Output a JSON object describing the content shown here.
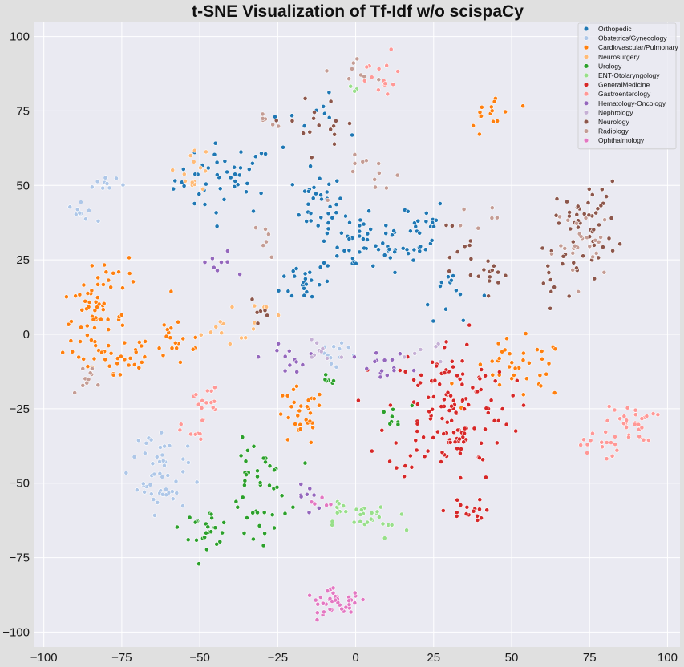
{
  "chart_data": {
    "type": "scatter",
    "title": "t-SNE Visualization of Tf-Idf w/o scispaCy",
    "xlabel": "",
    "ylabel": "",
    "xlim": [
      -103,
      104
    ],
    "ylim": [
      -105,
      105
    ],
    "xticks": [
      -100,
      -75,
      -50,
      -25,
      0,
      25,
      50,
      75,
      100
    ],
    "yticks": [
      -100,
      -75,
      -50,
      -25,
      0,
      25,
      50,
      75,
      100
    ],
    "xtick_labels": [
      "−100",
      "−75",
      "−50",
      "−25",
      "0",
      "25",
      "50",
      "75",
      "100"
    ],
    "ytick_labels": [
      "−100",
      "−75",
      "−50",
      "−25",
      "0",
      "25",
      "50",
      "75",
      "100"
    ],
    "grid": true,
    "legend_position": "top-right",
    "series": [
      {
        "name": "Orthopedic",
        "color": "#1f77b4",
        "clusters": [
          {
            "cx": -42,
            "cy": 52,
            "sx": 8,
            "sy": 6,
            "n": 45
          },
          {
            "cx": -12,
            "cy": 44,
            "sx": 4,
            "sy": 5,
            "n": 30
          },
          {
            "cx": 2,
            "cy": 30,
            "sx": 7,
            "sy": 5,
            "n": 45
          },
          {
            "cx": 18,
            "cy": 35,
            "sx": 6,
            "sy": 6,
            "n": 30
          },
          {
            "cx": -16,
            "cy": 18,
            "sx": 4,
            "sy": 4,
            "n": 22
          },
          {
            "cx": 30,
            "cy": 15,
            "sx": 5,
            "sy": 5,
            "n": 14
          },
          {
            "cx": -15,
            "cy": 72,
            "sx": 8,
            "sy": 4,
            "n": 10
          }
        ]
      },
      {
        "name": "Obstetrics/Gynecology",
        "color": "#aec7e8",
        "clusters": [
          {
            "cx": -88,
            "cy": 41,
            "sx": 2,
            "sy": 1.5,
            "n": 10
          },
          {
            "cx": -80,
            "cy": 51,
            "sx": 3,
            "sy": 2,
            "n": 10
          },
          {
            "cx": -62,
            "cy": -48,
            "sx": 4,
            "sy": 6,
            "n": 38
          },
          {
            "cx": -65,
            "cy": -40,
            "sx": 3,
            "sy": 3,
            "n": 12
          },
          {
            "cx": -6,
            "cy": -6,
            "sx": 4,
            "sy": 4,
            "n": 12
          }
        ]
      },
      {
        "name": "Cardiovascular/Pulmonary",
        "color": "#ff7f0e",
        "clusters": [
          {
            "cx": -84,
            "cy": 5,
            "sx": 5,
            "sy": 6,
            "n": 55
          },
          {
            "cx": -75,
            "cy": -8,
            "sx": 6,
            "sy": 5,
            "n": 25
          },
          {
            "cx": -57,
            "cy": -2,
            "sx": 5,
            "sy": 5,
            "n": 20
          },
          {
            "cx": -18,
            "cy": -28,
            "sx": 4,
            "sy": 5,
            "n": 30
          },
          {
            "cx": 52,
            "cy": -12,
            "sx": 8,
            "sy": 5,
            "n": 40
          },
          {
            "cx": 44,
            "cy": 74,
            "sx": 4,
            "sy": 4,
            "n": 15
          },
          {
            "cx": -76,
            "cy": 20,
            "sx": 3,
            "sy": 3,
            "n": 10
          }
        ]
      },
      {
        "name": "Neurosurgery",
        "color": "#ffbb78",
        "clusters": [
          {
            "cx": -52,
            "cy": 56,
            "sx": 3,
            "sy": 4,
            "n": 15
          },
          {
            "cx": -42,
            "cy": 2,
            "sx": 4,
            "sy": 3,
            "n": 8
          },
          {
            "cx": -30,
            "cy": 5,
            "sx": 4,
            "sy": 3,
            "n": 8
          }
        ]
      },
      {
        "name": "Urology",
        "color": "#2ca02c",
        "clusters": [
          {
            "cx": -48,
            "cy": -65,
            "sx": 4,
            "sy": 3,
            "n": 25
          },
          {
            "cx": -32,
            "cy": -48,
            "sx": 5,
            "sy": 6,
            "n": 28
          },
          {
            "cx": -32,
            "cy": -62,
            "sx": 4,
            "sy": 4,
            "n": 14
          },
          {
            "cx": 12,
            "cy": -28,
            "sx": 3,
            "sy": 2,
            "n": 8
          },
          {
            "cx": -10,
            "cy": -16,
            "sx": 2,
            "sy": 1.5,
            "n": 6
          }
        ]
      },
      {
        "name": "ENT-Otolaryngology",
        "color": "#98df8a",
        "clusters": [
          {
            "cx": 5,
            "cy": -63,
            "sx": 6,
            "sy": 3,
            "n": 25
          },
          {
            "cx": -5,
            "cy": -58,
            "sx": 3,
            "sy": 2,
            "n": 8
          },
          {
            "cx": 0,
            "cy": 82,
            "sx": 1.5,
            "sy": 1.5,
            "n": 3
          }
        ]
      },
      {
        "name": "GeneralMedicine",
        "color": "#d62728",
        "clusters": [
          {
            "cx": 30,
            "cy": -25,
            "sx": 10,
            "sy": 12,
            "n": 140
          },
          {
            "cx": 35,
            "cy": -60,
            "sx": 3,
            "sy": 2.5,
            "n": 15
          }
        ]
      },
      {
        "name": "Gastroenterology",
        "color": "#ff9896",
        "clusters": [
          {
            "cx": 88,
            "cy": -30,
            "sx": 4,
            "sy": 3,
            "n": 30
          },
          {
            "cx": 78,
            "cy": -37,
            "sx": 3,
            "sy": 3,
            "n": 15
          },
          {
            "cx": -48,
            "cy": -22,
            "sx": 2,
            "sy": 3,
            "n": 15
          },
          {
            "cx": -52,
            "cy": -33,
            "sx": 2,
            "sy": 2,
            "n": 8
          },
          {
            "cx": 8,
            "cy": 85,
            "sx": 4,
            "sy": 5,
            "n": 15
          }
        ]
      },
      {
        "name": "Hematology-Oncology",
        "color": "#9467bd",
        "clusters": [
          {
            "cx": -20,
            "cy": -8,
            "sx": 5,
            "sy": 3,
            "n": 12
          },
          {
            "cx": 10,
            "cy": -12,
            "sx": 5,
            "sy": 3,
            "n": 15
          },
          {
            "cx": -44,
            "cy": 23,
            "sx": 3,
            "sy": 3,
            "n": 8
          },
          {
            "cx": -15,
            "cy": -55,
            "sx": 3,
            "sy": 3,
            "n": 8
          }
        ]
      },
      {
        "name": "Nephrology",
        "color": "#c5b0d5",
        "clusters": [
          {
            "cx": -10,
            "cy": -5,
            "sx": 4,
            "sy": 3,
            "n": 10
          },
          {
            "cx": 22,
            "cy": -5,
            "sx": 4,
            "sy": 3,
            "n": 6
          }
        ]
      },
      {
        "name": "Neurology",
        "color": "#8c564b",
        "clusters": [
          {
            "cx": 74,
            "cy": 37,
            "sx": 5,
            "sy": 7,
            "n": 50
          },
          {
            "cx": 62,
            "cy": 18,
            "sx": 3,
            "sy": 5,
            "n": 12
          },
          {
            "cx": 42,
            "cy": 20,
            "sx": 4,
            "sy": 3,
            "n": 14
          },
          {
            "cx": -10,
            "cy": 72,
            "sx": 9,
            "sy": 4,
            "n": 16
          },
          {
            "cx": -30,
            "cy": 5,
            "sx": 2,
            "sy": 3,
            "n": 6
          },
          {
            "cx": 30,
            "cy": 30,
            "sx": 4,
            "sy": 4,
            "n": 8
          }
        ]
      },
      {
        "name": "Radiology",
        "color": "#c49c94",
        "clusters": [
          {
            "cx": 74,
            "cy": 30,
            "sx": 5,
            "sy": 6,
            "n": 25
          },
          {
            "cx": -86,
            "cy": -14,
            "sx": 3,
            "sy": 2,
            "n": 10
          },
          {
            "cx": 8,
            "cy": 52,
            "sx": 6,
            "sy": 4,
            "n": 12
          },
          {
            "cx": 2,
            "cy": 88,
            "sx": 3,
            "sy": 3,
            "n": 8
          },
          {
            "cx": -28,
            "cy": 32,
            "sx": 2,
            "sy": 3,
            "n": 6
          },
          {
            "cx": -30,
            "cy": 72,
            "sx": 2,
            "sy": 2,
            "n": 6
          },
          {
            "cx": 40,
            "cy": 40,
            "sx": 3,
            "sy": 2,
            "n": 6
          }
        ]
      },
      {
        "name": "Ophthalmology",
        "color": "#e377c2",
        "clusters": [
          {
            "cx": -6,
            "cy": -90,
            "sx": 5,
            "sy": 2,
            "n": 40
          },
          {
            "cx": -12,
            "cy": -57,
            "sx": 2,
            "sy": 2,
            "n": 5
          }
        ]
      }
    ]
  }
}
